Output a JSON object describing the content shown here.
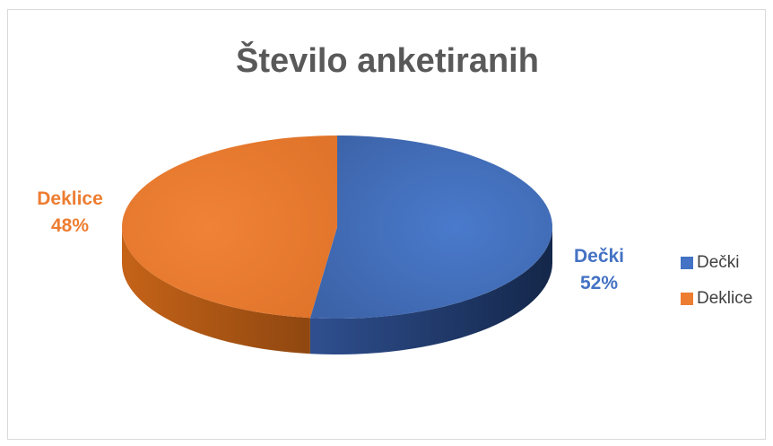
{
  "chart_data": {
    "type": "pie",
    "title": "Število anketiranih",
    "series": [
      {
        "name": "Dečki",
        "value": 52,
        "label": "52%",
        "color": "#4472c4"
      },
      {
        "name": "Deklice",
        "value": 48,
        "label": "48%",
        "color": "#ed7d31"
      }
    ],
    "legend_position": "right",
    "style": "3d"
  }
}
